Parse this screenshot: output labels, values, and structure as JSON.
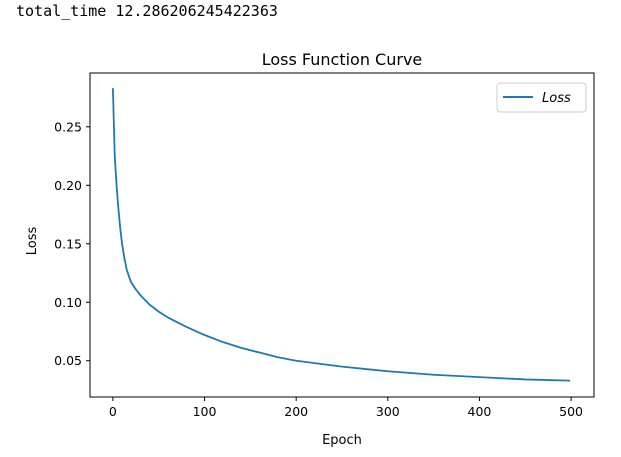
{
  "output": {
    "label": "total_time",
    "value": "12.286206245422363"
  },
  "chart_data": {
    "type": "line",
    "title": "Loss Function Curve",
    "xlabel": "Epoch",
    "ylabel": "Loss",
    "xlim": [
      -25,
      525
    ],
    "ylim": [
      0.019,
      0.296
    ],
    "xticks": [
      0,
      100,
      200,
      300,
      400,
      500
    ],
    "yticks": [
      0.05,
      0.1,
      0.15,
      0.2,
      0.25
    ],
    "xtick_labels": [
      "0",
      "100",
      "200",
      "300",
      "400",
      "500"
    ],
    "ytick_labels": [
      "0.05",
      "0.10",
      "0.15",
      "0.20",
      "0.25"
    ],
    "grid": false,
    "legend_position": "top-right",
    "series_color": "#1f77b4",
    "series": [
      {
        "name": "Loss",
        "x": [
          0,
          2,
          4,
          6,
          8,
          10,
          12,
          15,
          18,
          20,
          25,
          30,
          35,
          40,
          50,
          60,
          70,
          80,
          100,
          120,
          140,
          160,
          180,
          200,
          250,
          300,
          350,
          400,
          450,
          499
        ],
        "y": [
          0.283,
          0.225,
          0.2,
          0.18,
          0.163,
          0.15,
          0.14,
          0.128,
          0.121,
          0.117,
          0.111,
          0.106,
          0.102,
          0.098,
          0.092,
          0.087,
          0.083,
          0.079,
          0.072,
          0.066,
          0.061,
          0.057,
          0.053,
          0.05,
          0.045,
          0.041,
          0.038,
          0.036,
          0.034,
          0.033
        ]
      }
    ]
  }
}
